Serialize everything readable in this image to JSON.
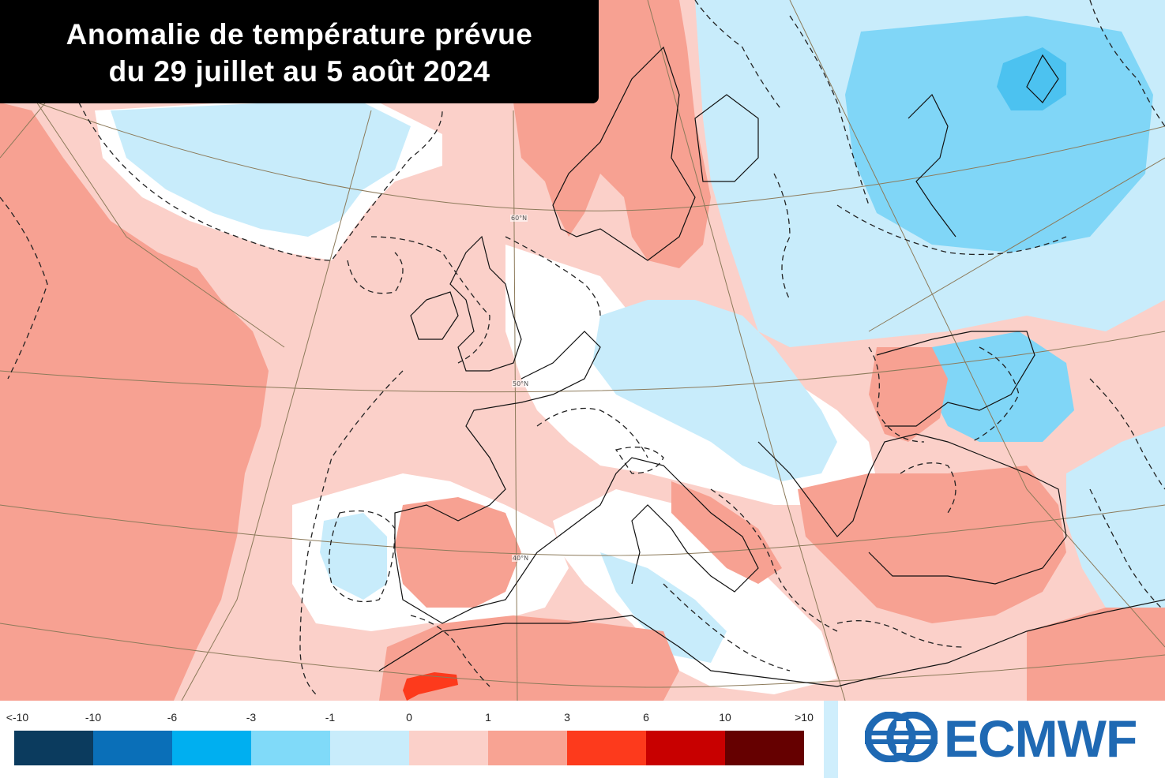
{
  "title": {
    "line1": "Anomalie de température prévue",
    "line2": "du 29 juillet au 5 août 2024"
  },
  "latitude_labels": [
    "60°N",
    "50°N",
    "40°N"
  ],
  "legend": {
    "ticks": [
      "<-10",
      "-10",
      "-6",
      "-3",
      "-1",
      "0",
      "1",
      "3",
      "6",
      "10",
      ">10"
    ],
    "colors": [
      "#0b3b5e",
      "#0a6fb8",
      "#00aff0",
      "#80daf9",
      "#c8ecfb",
      "#fbd0c9",
      "#f8a393",
      "#fd3a1c",
      "#c80000",
      "#650000"
    ]
  },
  "palette": {
    "strong_warm": "#f7a192",
    "light_warm": "#fbd0c9",
    "neutral": "#ffffff",
    "light_cool": "#c8ecfb",
    "cool": "#80d6f7",
    "strong_cool": "#4cc2f0",
    "hot_spot": "#fd3a1c"
  },
  "logo": {
    "text": "ECMWF",
    "color": "#1f69b3",
    "icon": "ecmwf-logo-icon"
  }
}
